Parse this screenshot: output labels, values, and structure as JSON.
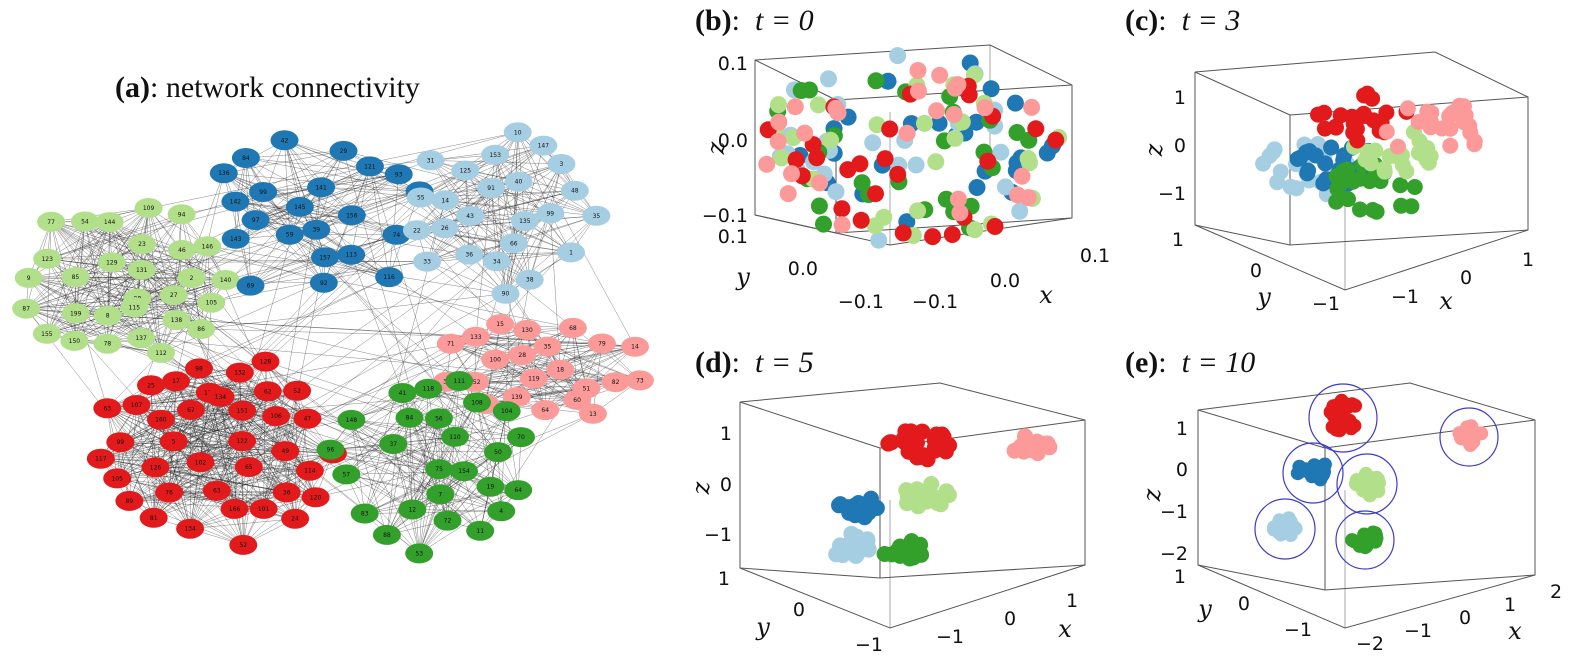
{
  "colors": {
    "blue": "#1f78b4",
    "light_blue": "#a6cee3",
    "green": "#33a02c",
    "light_green": "#b2df8a",
    "red": "#e31a1c",
    "pink": "#fb9a99",
    "circle": "#3b3bc9"
  },
  "panel_a": {
    "title_prefix": "(a)",
    "title_rest": ": network connectivity",
    "communities": {
      "light_green": [
        "140",
        "8",
        "144",
        "150",
        "54",
        "23",
        "129",
        "146",
        "138",
        "199",
        "27",
        "123",
        "131",
        "85",
        "46",
        "9",
        "109",
        "98",
        "155",
        "77",
        "112",
        "137",
        "105",
        "86",
        "115",
        "2",
        "78",
        "87",
        "94"
      ],
      "blue": [
        "143",
        "6",
        "59",
        "69",
        "42",
        "157",
        "141",
        "93",
        "84",
        "142",
        "121",
        "99",
        "156",
        "145",
        "29",
        "136",
        "74",
        "92",
        "116",
        "39",
        "113",
        "97"
      ],
      "light_blue": [
        "135",
        "1",
        "22",
        "153",
        "31",
        "10",
        "40",
        "125",
        "14",
        "43",
        "36",
        "38",
        "35",
        "33",
        "99",
        "90",
        "3",
        "147",
        "26",
        "55",
        "48",
        "66",
        "34",
        "91"
      ],
      "pink": [
        "133",
        "79",
        "18",
        "51",
        "130",
        "64",
        "35",
        "68",
        "71",
        "119",
        "100",
        "152",
        "82",
        "139",
        "39",
        "14",
        "13",
        "28",
        "15",
        "32",
        "60",
        "73"
      ],
      "red": [
        "65",
        "98",
        "17",
        "122",
        "63",
        "76",
        "101",
        "99",
        "24",
        "47",
        "126",
        "132",
        "62",
        "49",
        "89",
        "106",
        "102",
        "67",
        "52",
        "114",
        "134",
        "128",
        "5",
        "105",
        "127",
        "25",
        "166",
        "107",
        "52",
        "81",
        "36",
        "151",
        "134",
        "63",
        "160",
        "124",
        "117",
        "120"
      ],
      "green": [
        "56",
        "111",
        "4",
        "88",
        "70",
        "104",
        "75",
        "148",
        "7",
        "50",
        "57",
        "53",
        "19",
        "84",
        "41",
        "64",
        "83",
        "37",
        "11",
        "96",
        "118",
        "72",
        "12",
        "154",
        "108",
        "110"
      ]
    }
  },
  "panels": [
    {
      "id": "b",
      "label": "(b)",
      "t_text": "t = 0",
      "z_ticks": [
        "0.1",
        "0.0",
        "−0.1"
      ],
      "y_ticks": [
        "0.1",
        "0.0",
        "−0.1"
      ],
      "x_ticks": [
        "−0.1",
        "0.0",
        "0.1"
      ],
      "axes": {
        "x": "x",
        "y": "y",
        "z": "z"
      }
    },
    {
      "id": "c",
      "label": "(c)",
      "t_text": "t = 3",
      "z_ticks": [
        "1",
        "0",
        "−1"
      ],
      "y_ticks": [
        "1",
        "0",
        "−1"
      ],
      "x_ticks": [
        "−1",
        "0",
        "1"
      ],
      "axes": {
        "x": "x",
        "y": "y",
        "z": "z"
      }
    },
    {
      "id": "d",
      "label": "(d)",
      "t_text": "t = 5",
      "z_ticks": [
        "1",
        "0",
        "−1"
      ],
      "y_ticks": [
        "1",
        "0",
        "−1"
      ],
      "x_ticks": [
        "−1",
        "0",
        "1"
      ],
      "axes": {
        "x": "x",
        "y": "y",
        "z": "z"
      }
    },
    {
      "id": "e",
      "label": "(e)",
      "t_text": "t = 10",
      "z_ticks": [
        "1",
        "0",
        "−1",
        "−2"
      ],
      "y_ticks": [
        "1",
        "0",
        "−1"
      ],
      "x_ticks": [
        "−2",
        "−1",
        "0",
        "1",
        "2"
      ],
      "axes": {
        "x": "x",
        "y": "y",
        "z": "z"
      }
    }
  ]
}
